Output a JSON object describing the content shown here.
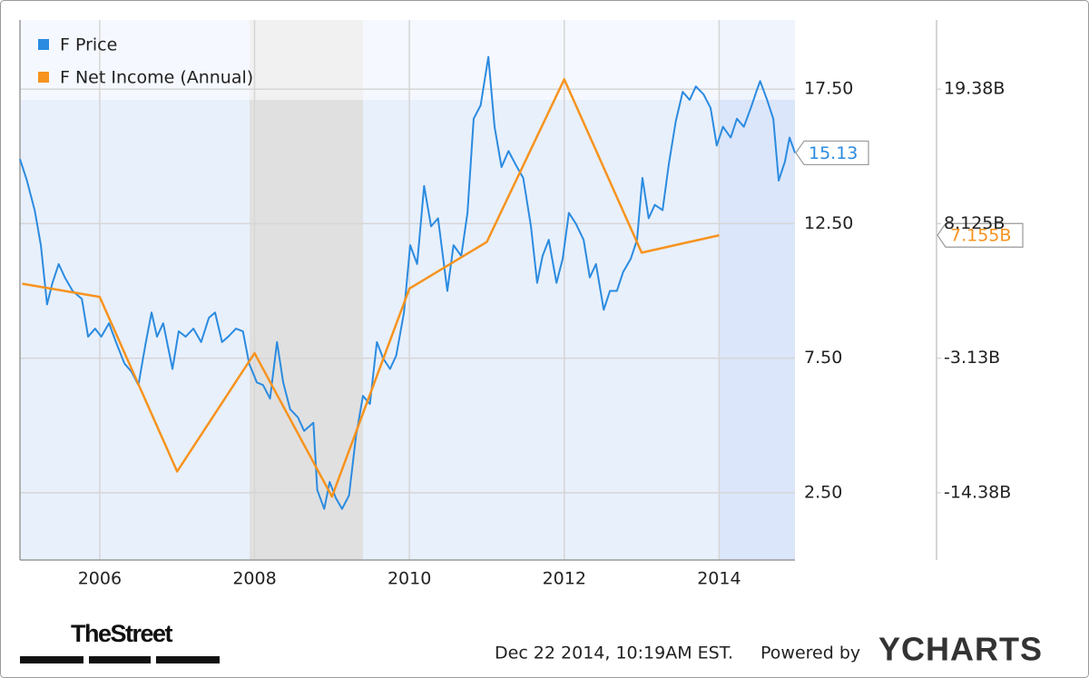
{
  "chart_data": {
    "type": "line",
    "legend": "upper left",
    "grid": true,
    "xlim": [
      2004.97,
      2014.98
    ],
    "xticks": [
      2006,
      2008,
      2010,
      2012,
      2014
    ],
    "ylim": [
      0,
      20.07
    ],
    "yticks": [
      {
        "value": 2.5,
        "label": "2.50"
      },
      {
        "value": 7.5,
        "label": "7.50"
      },
      {
        "value": 12.5,
        "label": "12.50"
      },
      {
        "value": 17.5,
        "label": "17.50"
      }
    ],
    "y2lim": [
      -20,
      25.16
    ],
    "y2ticks": [
      {
        "value": -14.375,
        "label": "-14.38B"
      },
      {
        "value": -3.125,
        "label": "-3.13B"
      },
      {
        "value": 8.125,
        "label": "8.125B"
      },
      {
        "value": 19.375,
        "label": "19.38B"
      }
    ],
    "series": [
      {
        "name": "F Price",
        "color": "#2b8be0",
        "x": [
          2004.97,
          2005.06,
          2005.16,
          2005.24,
          2005.32,
          2005.39,
          2005.47,
          2005.55,
          2005.65,
          2005.77,
          2005.85,
          2005.94,
          2006.02,
          2006.12,
          2006.21,
          2006.32,
          2006.41,
          2006.5,
          2006.59,
          2006.67,
          2006.74,
          2006.82,
          2006.94,
          2007.02,
          2007.11,
          2007.21,
          2007.31,
          2007.41,
          2007.49,
          2007.58,
          2007.66,
          2007.76,
          2007.85,
          2007.93,
          2008.03,
          2008.11,
          2008.2,
          2008.29,
          2008.37,
          2008.46,
          2008.56,
          2008.64,
          2008.76,
          2008.81,
          2008.9,
          2008.97,
          2009.05,
          2009.13,
          2009.22,
          2009.31,
          2009.4,
          2009.49,
          2009.58,
          2009.66,
          2009.75,
          2009.83,
          2009.93,
          2010.01,
          2010.1,
          2010.19,
          2010.28,
          2010.37,
          2010.49,
          2010.57,
          2010.67,
          2010.75,
          2010.83,
          2010.92,
          2011.02,
          2011.1,
          2011.19,
          2011.28,
          2011.39,
          2011.47,
          2011.57,
          2011.65,
          2011.72,
          2011.8,
          2011.9,
          2011.98,
          2012.06,
          2012.15,
          2012.25,
          2012.33,
          2012.41,
          2012.51,
          2012.59,
          2012.68,
          2012.76,
          2012.86,
          2012.94,
          2013.01,
          2013.09,
          2013.17,
          2013.27,
          2013.35,
          2013.44,
          2013.53,
          2013.62,
          2013.7,
          2013.8,
          2013.89,
          2013.97,
          2014.05,
          2014.15,
          2014.23,
          2014.32,
          2014.41,
          2014.48,
          2014.53,
          2014.62,
          2014.7,
          2014.77,
          2014.85,
          2014.91,
          2014.98
        ],
        "values": [
          14.9,
          14.1,
          13.0,
          11.7,
          9.5,
          10.3,
          11.0,
          10.5,
          10.0,
          9.7,
          8.3,
          8.6,
          8.3,
          8.8,
          8.1,
          7.3,
          7.0,
          6.5,
          8.0,
          9.2,
          8.3,
          8.8,
          7.1,
          8.5,
          8.3,
          8.6,
          8.1,
          9.0,
          9.2,
          8.1,
          8.3,
          8.6,
          8.5,
          7.3,
          6.6,
          6.5,
          6.0,
          8.1,
          6.6,
          5.6,
          5.3,
          4.8,
          5.1,
          2.6,
          1.9,
          2.9,
          2.3,
          1.9,
          2.4,
          4.6,
          6.1,
          5.8,
          8.1,
          7.5,
          7.1,
          7.6,
          9.2,
          11.7,
          11.0,
          13.9,
          12.4,
          12.7,
          10.0,
          11.7,
          11.3,
          12.9,
          16.4,
          16.9,
          18.7,
          16.1,
          14.6,
          15.2,
          14.6,
          14.2,
          12.4,
          10.3,
          11.3,
          11.9,
          10.3,
          11.2,
          12.9,
          12.5,
          11.9,
          10.5,
          11.0,
          9.3,
          10.0,
          10.0,
          10.7,
          11.2,
          11.9,
          14.2,
          12.7,
          13.2,
          13.0,
          14.7,
          16.3,
          17.4,
          17.1,
          17.6,
          17.3,
          16.8,
          15.4,
          16.1,
          15.7,
          16.4,
          16.1,
          16.8,
          17.4,
          17.8,
          17.1,
          16.4,
          14.1,
          14.8,
          15.7,
          15.13
        ],
        "value_labels": [
          null,
          null,
          null,
          null,
          null,
          null,
          null,
          null,
          null,
          null,
          null,
          null,
          null,
          null,
          null,
          null,
          null,
          null,
          null,
          null,
          null,
          null,
          null,
          null,
          null,
          null,
          null,
          null,
          null,
          null,
          null,
          null,
          null,
          null,
          null,
          null,
          null,
          null,
          null,
          null,
          null,
          null,
          null,
          null,
          null,
          null,
          null,
          null,
          null,
          null,
          null,
          null,
          null,
          null,
          null,
          null,
          null,
          null,
          null,
          null,
          null,
          null,
          null,
          null,
          null,
          null,
          null,
          null,
          null,
          null,
          null,
          null,
          null,
          null,
          null,
          null,
          null,
          null,
          null,
          null,
          null,
          null,
          null,
          null,
          null,
          null,
          null,
          null,
          null,
          null,
          null,
          null,
          null,
          null,
          null,
          null,
          null,
          null,
          null,
          null,
          null,
          null,
          null,
          null,
          null,
          null,
          null,
          null,
          null,
          null,
          null,
          null,
          null,
          null,
          null,
          "15.13"
        ]
      },
      {
        "name": "F Net Income (Annual)",
        "color": "#f7931e",
        "axis": "y2",
        "x": [
          2005.0,
          2006,
          2007,
          2008,
          2009,
          2010,
          2011,
          2012,
          2013,
          2014
        ],
        "values": [
          3.1,
          2.0,
          -12.6,
          -2.7,
          -14.7,
          2.7,
          6.6,
          20.2,
          5.7,
          7.155
        ],
        "value_labels": [
          null,
          null,
          null,
          null,
          null,
          null,
          null,
          null,
          null,
          "7.155B"
        ]
      }
    ],
    "timestamp": "Dec 22 2014, 10:19AM EST.",
    "powered_by": "Powered by",
    "brand": "YCHARTS",
    "publisher": "TheStreet"
  }
}
